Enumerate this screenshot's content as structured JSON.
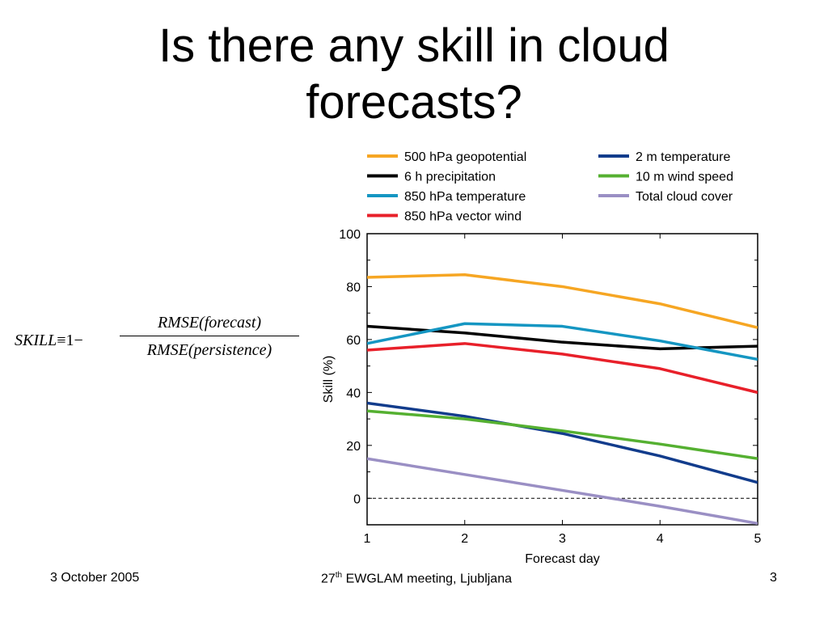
{
  "slide": {
    "title_line1": "Is there any skill in cloud",
    "title_line2": "forecasts?"
  },
  "formula": {
    "lhs": "SKILL",
    "equiv": "≡",
    "one": "1",
    "minus": "−",
    "numerator": "RMSE(forecast)",
    "denominator": "RMSE(persistence)"
  },
  "chart_data": {
    "type": "line",
    "xlabel": "Forecast day",
    "ylabel": "Skill (%)",
    "xlim": [
      1,
      5
    ],
    "ylim": [
      -10,
      100
    ],
    "xticks": [
      1,
      2,
      3,
      4,
      5
    ],
    "yticks": [
      0,
      20,
      40,
      60,
      80,
      100
    ],
    "grid": false,
    "zero_line": "dashed",
    "legend_placement": "top",
    "x": [
      1,
      2,
      3,
      4,
      5
    ],
    "series": [
      {
        "name": "500 hPa geopotential",
        "color": "#F6A623",
        "values": [
          83.5,
          84.5,
          80,
          73.5,
          64.5
        ]
      },
      {
        "name": "6 h precipitation",
        "color": "#000000",
        "values": [
          65,
          62.5,
          59,
          56.5,
          57.5
        ]
      },
      {
        "name": "850 hPa temperature",
        "color": "#1596C2",
        "values": [
          58.5,
          66,
          65,
          59.5,
          52.5
        ]
      },
      {
        "name": "850 hPa vector wind",
        "color": "#E8202A",
        "values": [
          56,
          58.5,
          54.5,
          49,
          40
        ]
      },
      {
        "name": "2 m temperature",
        "color": "#123C8C",
        "values": [
          36,
          31,
          24.5,
          16,
          6
        ]
      },
      {
        "name": "10 m wind speed",
        "color": "#55B031",
        "values": [
          33,
          30,
          25.5,
          20.5,
          15
        ]
      },
      {
        "name": "Total cloud cover",
        "color": "#9A8FC4",
        "values": [
          15,
          9,
          3,
          -3,
          -9.5
        ]
      }
    ]
  },
  "footer": {
    "date": "3 October 2005",
    "event_prefix": "27",
    "event_sup": "th",
    "event_rest": " EWGLAM meeting, Ljubljana",
    "page": "3"
  }
}
